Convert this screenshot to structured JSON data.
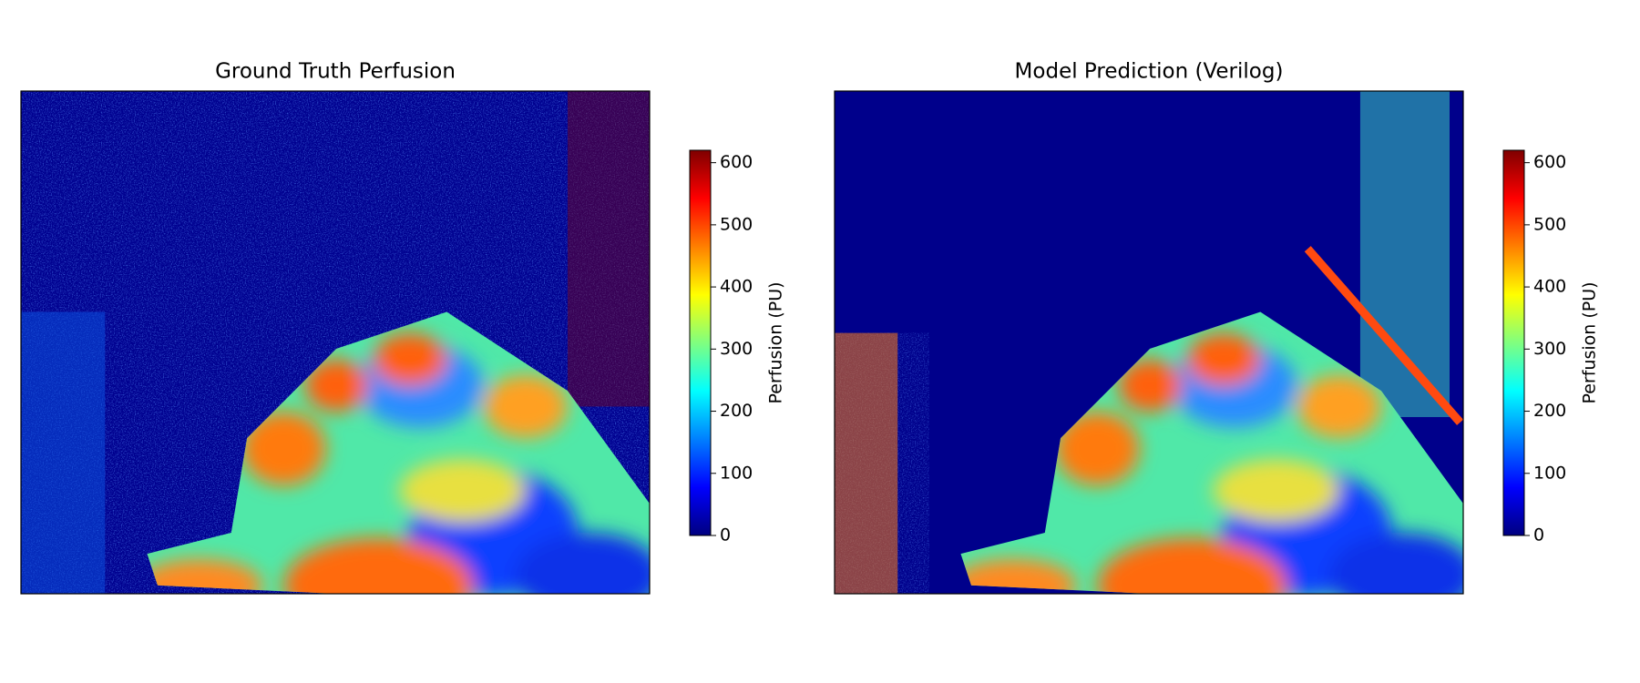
{
  "chart_data": [
    {
      "type": "heatmap",
      "title": "Ground Truth Perfusion",
      "colorbar_label": "Perfusion (PU)",
      "colormap": "jet",
      "clim": [
        0,
        620
      ],
      "cticks": [
        0,
        100,
        200,
        300,
        400,
        500,
        600
      ]
    },
    {
      "type": "heatmap",
      "title": "Model Prediction (Verilog)",
      "colorbar_label": "Perfusion (PU)",
      "colormap": "jet",
      "clim": [
        0,
        620
      ],
      "cticks": [
        0,
        100,
        200,
        300,
        400,
        500,
        600
      ]
    }
  ]
}
